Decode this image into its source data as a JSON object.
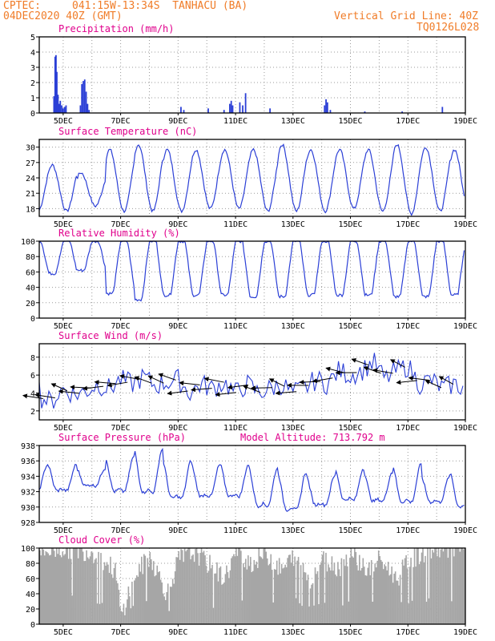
{
  "header": {
    "source": "CPTEC:",
    "location": "041:15W-13:34S  TANHACU (BA)",
    "run": "04DEC2020 40Z (GMT)",
    "grid_note": "Vertical Grid Line: 40Z",
    "code": "TQ0126L028"
  },
  "colors": {
    "header": "#f07c28",
    "title": "#e0008c",
    "line": "#2b3fd6",
    "cloud": "#a6a6a6",
    "wind_arrow": "#000000"
  },
  "x_axis": {
    "ticks": [
      {
        "label": "5DEC",
        "day": 5
      },
      {
        "label": "7DEC",
        "day": 7
      },
      {
        "label": "9DEC",
        "day": 9
      },
      {
        "label": "11DEC",
        "day": 11
      },
      {
        "label": "13DEC",
        "day": 13
      },
      {
        "label": "15DEC",
        "day": 15
      },
      {
        "label": "17DEC",
        "day": 17
      },
      {
        "label": "19DEC",
        "day": 19
      }
    ],
    "start_day": 4.167,
    "end_day": 19.0
  },
  "panels": {
    "precipitation": {
      "title": "Precipitation (mm/h)"
    },
    "temperature": {
      "title": "Surface Temperature (nC)"
    },
    "humidity": {
      "title": "Relative Humidity (%)"
    },
    "wind": {
      "title": "Surface Wind (m/s)"
    },
    "pressure": {
      "title": "Surface Pressure (hPa)",
      "extra": "Model Altitude: 713.792 m"
    },
    "cloud": {
      "title": "Cloud Cover (%)"
    }
  },
  "chart_data": [
    {
      "type": "bar",
      "title": "Precipitation (mm/h)",
      "ylim": [
        0,
        5
      ],
      "yticks": [
        0,
        1,
        2,
        3,
        4,
        5
      ],
      "x_unit": "day of month (Dec 2020)",
      "points": [
        [
          4.68,
          1.1
        ],
        [
          4.72,
          3.7
        ],
        [
          4.75,
          3.8
        ],
        [
          4.78,
          2.7
        ],
        [
          4.82,
          1.2
        ],
        [
          4.86,
          0.6
        ],
        [
          4.9,
          0.8
        ],
        [
          4.95,
          0.5
        ],
        [
          5.0,
          0.3
        ],
        [
          5.05,
          0.4
        ],
        [
          5.1,
          0.5
        ],
        [
          5.6,
          0.5
        ],
        [
          5.65,
          1.9
        ],
        [
          5.7,
          2.1
        ],
        [
          5.75,
          2.2
        ],
        [
          5.8,
          1.4
        ],
        [
          5.85,
          0.6
        ],
        [
          5.9,
          0.2
        ],
        [
          9.1,
          0.4
        ],
        [
          9.2,
          0.2
        ],
        [
          10.05,
          0.3
        ],
        [
          10.6,
          0.2
        ],
        [
          10.8,
          0.6
        ],
        [
          10.85,
          0.8
        ],
        [
          10.9,
          0.5
        ],
        [
          11.15,
          0.7
        ],
        [
          11.25,
          0.5
        ],
        [
          11.35,
          1.3
        ],
        [
          12.2,
          0.3
        ],
        [
          14.1,
          0.5
        ],
        [
          14.15,
          0.9
        ],
        [
          14.2,
          0.7
        ],
        [
          14.3,
          0.2
        ],
        [
          15.5,
          0.1
        ],
        [
          16.8,
          0.1
        ],
        [
          18.2,
          0.4
        ]
      ]
    },
    {
      "type": "line",
      "title": "Surface Temperature (nC)",
      "ylim": [
        16.5,
        31.5
      ],
      "yticks": [
        18,
        21,
        24,
        27,
        30
      ],
      "x_unit": "day of month (Dec 2020)",
      "daily_min": [
        17.5,
        18.5,
        17.5,
        17.5,
        17.5,
        18.0,
        18.0,
        17.5,
        17.5,
        17.5,
        18.0,
        17.5,
        17.0,
        17.5,
        17.5
      ],
      "daily_max": [
        26.5,
        25.0,
        29.5,
        30.5,
        29.5,
        29.5,
        29.5,
        29.5,
        30.5,
        29.5,
        29.5,
        29.5,
        30.5,
        30.0,
        29.5
      ]
    },
    {
      "type": "line",
      "title": "Relative Humidity (%)",
      "ylim": [
        0,
        100
      ],
      "yticks": [
        0,
        20,
        40,
        60,
        80,
        100
      ],
      "x_unit": "day of month (Dec 2020)",
      "daily_min": [
        58,
        62,
        32,
        24,
        30,
        30,
        30,
        28,
        28,
        30,
        30,
        30,
        28,
        28,
        30
      ],
      "daily_max": [
        100,
        100,
        100,
        100,
        100,
        100,
        100,
        100,
        100,
        100,
        100,
        100,
        100,
        100,
        100
      ]
    },
    {
      "type": "line",
      "title": "Surface Wind (m/s)",
      "ylim": [
        1,
        9.5
      ],
      "yticks": [
        2,
        4,
        6,
        8
      ],
      "x_unit": "day of month (Dec 2020)",
      "speed_approx": [
        [
          4.2,
          3.5
        ],
        [
          4.6,
          3.0
        ],
        [
          5.0,
          4.5
        ],
        [
          5.4,
          3.8
        ],
        [
          5.8,
          4.2
        ],
        [
          6.2,
          5.0
        ],
        [
          6.6,
          4.5
        ],
        [
          7.0,
          5.5
        ],
        [
          7.4,
          5.0
        ],
        [
          7.8,
          5.8
        ],
        [
          8.2,
          4.8
        ],
        [
          8.6,
          5.2
        ],
        [
          9.0,
          5.5
        ],
        [
          9.4,
          4.0
        ],
        [
          9.8,
          5.0
        ],
        [
          10.2,
          4.5
        ],
        [
          10.6,
          5.2
        ],
        [
          11.0,
          4.0
        ],
        [
          11.4,
          5.0
        ],
        [
          11.8,
          4.0
        ],
        [
          12.2,
          4.5
        ],
        [
          12.6,
          5.0
        ],
        [
          13.0,
          4.0
        ],
        [
          13.4,
          4.5
        ],
        [
          13.8,
          5.5
        ],
        [
          14.2,
          5.0
        ],
        [
          14.6,
          6.5
        ],
        [
          15.0,
          6.0
        ],
        [
          15.4,
          6.5
        ],
        [
          15.8,
          7.5
        ],
        [
          16.2,
          5.5
        ],
        [
          16.6,
          6.5
        ],
        [
          17.0,
          7.0
        ],
        [
          17.4,
          5.0
        ],
        [
          17.8,
          5.5
        ],
        [
          18.2,
          4.5
        ],
        [
          18.6,
          5.0
        ],
        [
          19.0,
          4.5
        ]
      ]
    },
    {
      "type": "line",
      "title": "Surface Pressure (hPa)",
      "ylim": [
        928,
        938
      ],
      "yticks": [
        928,
        930,
        932,
        934,
        936,
        938
      ],
      "x_unit": "day of month (Dec 2020)",
      "daily_min": [
        931.0,
        932.0,
        930.5,
        930.0,
        929.5,
        930.0,
        930.0,
        928.5,
        928.0,
        929.0,
        929.5,
        929.5,
        929.0,
        929.5,
        928.5
      ],
      "daily_max": [
        935.5,
        935.0,
        936.5,
        937.5,
        936.0,
        935.5,
        935.5,
        935.0,
        934.5,
        934.0,
        935.0,
        934.5,
        935.5,
        934.0,
        934.5
      ]
    },
    {
      "type": "bar",
      "title": "Cloud Cover (%)",
      "ylim": [
        0,
        100
      ],
      "yticks": [
        0,
        20,
        40,
        60,
        80,
        100
      ],
      "x_unit": "day of month (Dec 2020)",
      "level_approx": [
        [
          4.2,
          95
        ],
        [
          5.0,
          100
        ],
        [
          6.0,
          95
        ],
        [
          6.8,
          70
        ],
        [
          7.0,
          10
        ],
        [
          7.4,
          60
        ],
        [
          8.0,
          90
        ],
        [
          8.6,
          40
        ],
        [
          9.0,
          85
        ],
        [
          9.6,
          95
        ],
        [
          10.0,
          80
        ],
        [
          10.6,
          60
        ],
        [
          11.0,
          95
        ],
        [
          11.6,
          80
        ],
        [
          12.0,
          95
        ],
        [
          12.6,
          70
        ],
        [
          13.0,
          90
        ],
        [
          13.6,
          60
        ],
        [
          14.0,
          85
        ],
        [
          14.6,
          75
        ],
        [
          15.0,
          95
        ],
        [
          15.6,
          70
        ],
        [
          16.0,
          85
        ],
        [
          16.6,
          60
        ],
        [
          17.0,
          85
        ],
        [
          17.6,
          95
        ],
        [
          18.0,
          100
        ],
        [
          19.0,
          100
        ]
      ]
    }
  ]
}
